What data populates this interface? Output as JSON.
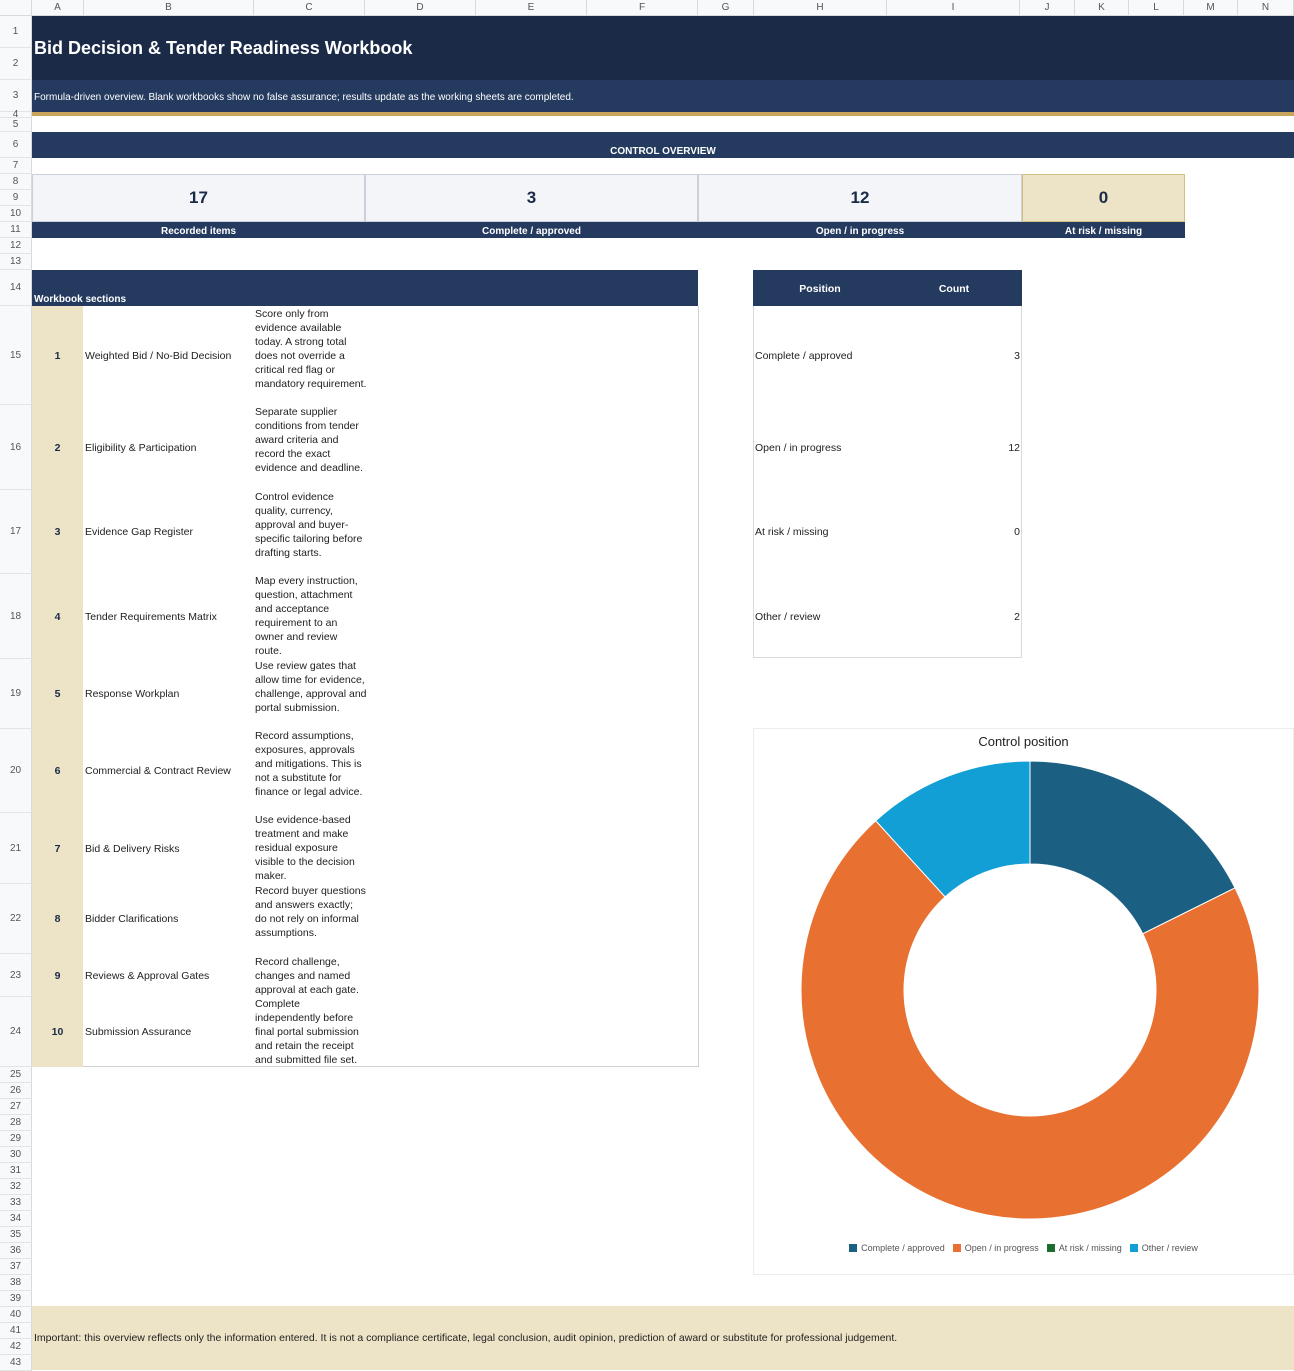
{
  "columns": [
    "A",
    "B",
    "C",
    "D",
    "E",
    "F",
    "G",
    "H",
    "I",
    "J",
    "K",
    "L",
    "M",
    "N"
  ],
  "rows": [
    "1",
    "2",
    "3",
    "4",
    "5",
    "6",
    "7",
    "8",
    "9",
    "10",
    "11",
    "12",
    "13",
    "14",
    "15",
    "16",
    "17",
    "18",
    "19",
    "20",
    "21",
    "22",
    "23",
    "24",
    "25",
    "26",
    "27",
    "28",
    "29",
    "30",
    "31",
    "32",
    "33",
    "34",
    "35",
    "36",
    "37",
    "38",
    "39",
    "40",
    "41",
    "42",
    "43"
  ],
  "title": "Bid Decision & Tender Readiness Workbook",
  "subtitle": "Formula-driven overview. Blank workbooks show no false assurance; results update as the working sheets are completed.",
  "control_overview_label": "CONTROL OVERVIEW",
  "kpis": [
    {
      "value": "17",
      "label": "Recorded items"
    },
    {
      "value": "3",
      "label": "Complete / approved"
    },
    {
      "value": "12",
      "label": "Open / in progress"
    },
    {
      "value": "0",
      "label": "At risk / missing"
    }
  ],
  "sections_header": "Workbook sections",
  "sections": [
    {
      "num": "1",
      "name": "Weighted Bid / No-Bid Decision",
      "desc": "Score only from evidence available today. A strong total does not override a critical red flag or mandatory requirement."
    },
    {
      "num": "2",
      "name": "Eligibility & Participation",
      "desc": "Separate supplier conditions from tender award criteria and record the exact evidence and deadline."
    },
    {
      "num": "3",
      "name": "Evidence Gap Register",
      "desc": "Control evidence quality, currency, approval and buyer-specific tailoring before drafting starts."
    },
    {
      "num": "4",
      "name": "Tender Requirements Matrix",
      "desc": "Map every instruction, question, attachment and acceptance requirement to an owner and review route."
    },
    {
      "num": "5",
      "name": "Response Workplan",
      "desc": "Use review gates that allow time for evidence, challenge, approval and portal submission."
    },
    {
      "num": "6",
      "name": "Commercial & Contract Review",
      "desc": "Record assumptions, exposures, approvals and mitigations. This is not a substitute for finance or legal advice."
    },
    {
      "num": "7",
      "name": "Bid & Delivery Risks",
      "desc": "Use evidence-based treatment and make residual exposure visible to the decision maker."
    },
    {
      "num": "8",
      "name": "Bidder Clarifications",
      "desc": "Record buyer questions and answers exactly; do not rely on informal assumptions."
    },
    {
      "num": "9",
      "name": "Reviews & Approval Gates",
      "desc": "Record challenge, changes and named approval at each gate."
    },
    {
      "num": "10",
      "name": "Submission Assurance",
      "desc": "Complete independently before final portal submission and retain the receipt and submitted file set."
    }
  ],
  "position_table": {
    "header_position": "Position",
    "header_count": "Count",
    "rows": [
      {
        "name": "Complete / approved",
        "count": "3"
      },
      {
        "name": "Open / in progress",
        "count": "12"
      },
      {
        "name": "At risk / missing",
        "count": "0"
      },
      {
        "name": "Other / review",
        "count": "2"
      }
    ]
  },
  "chart_data": {
    "type": "pie",
    "title": "Control position",
    "categories": [
      "Complete / approved",
      "Open / in progress",
      "At risk / missing",
      "Other / review"
    ],
    "values": [
      3,
      12,
      0,
      2
    ],
    "colors": [
      "#1b6083",
      "#e87030",
      "#1e6b2f",
      "#129fd6"
    ],
    "legend": "bottom",
    "donut": true
  },
  "note": "Important: this overview reflects only the information entered. It is not a compliance certificate, legal conclusion, audit opinion, prediction of award or substitute for professional judgement."
}
